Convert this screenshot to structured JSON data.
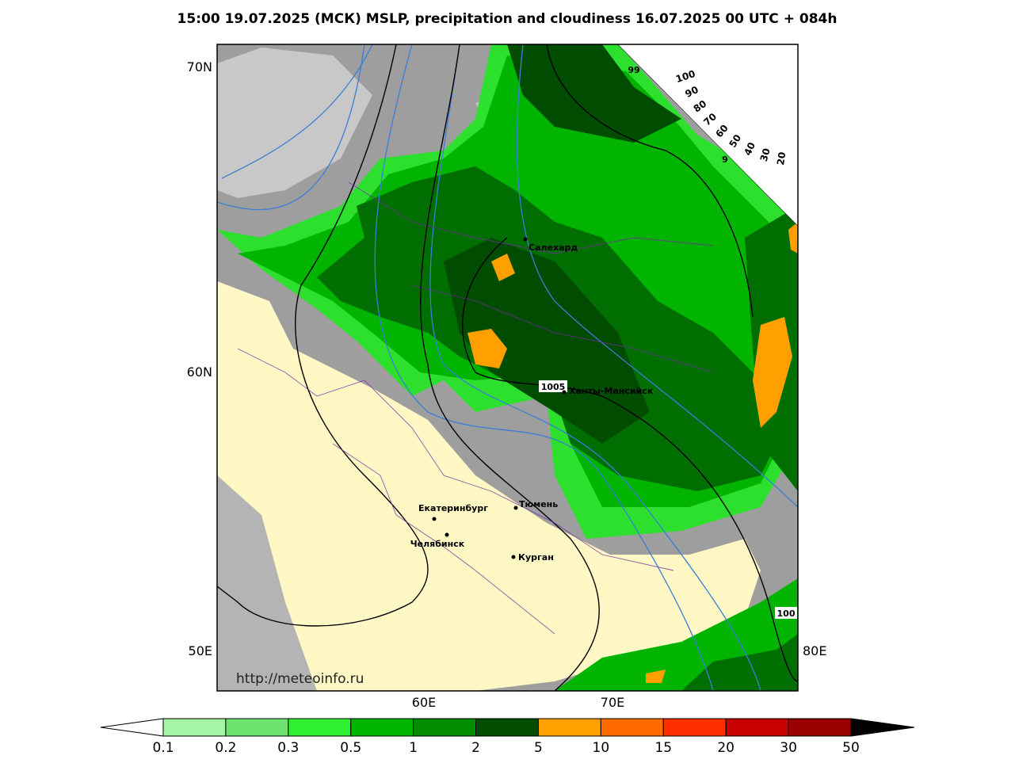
{
  "header": {
    "title": "15:00 19.07.2025 (МСК) MSLP, precipitation and cloudiness 16.07.2025 00 UTC + 084h"
  },
  "map": {
    "lat_labels": [
      "70N",
      "60N"
    ],
    "lon_labels": [
      "50E",
      "60E",
      "70E",
      "80E"
    ],
    "cities": [
      {
        "name": "Салехард"
      },
      {
        "name": "Ханты-Мансийск"
      },
      {
        "name": "Екатеринбург"
      },
      {
        "name": "Тюмень"
      },
      {
        "name": "Челябинск"
      },
      {
        "name": "Курган"
      }
    ],
    "isobar_labels": [
      "99",
      "9",
      "1005",
      "100"
    ],
    "url": "http://meteoinfo.ru"
  },
  "cloud_scale": {
    "labels": [
      100,
      90,
      80,
      70,
      60,
      50,
      40,
      30,
      20
    ]
  },
  "legend": {
    "levels": [
      0.1,
      0.2,
      0.3,
      0.5,
      1,
      2,
      5,
      10,
      15,
      20,
      30,
      50
    ],
    "colors": [
      "#a6f5a6",
      "#6ee36e",
      "#2ef02e",
      "#00b400",
      "#008c00",
      "#004c00",
      "#ffa000",
      "#ff6a00",
      "#ff3000",
      "#c80000",
      "#960000"
    ]
  }
}
